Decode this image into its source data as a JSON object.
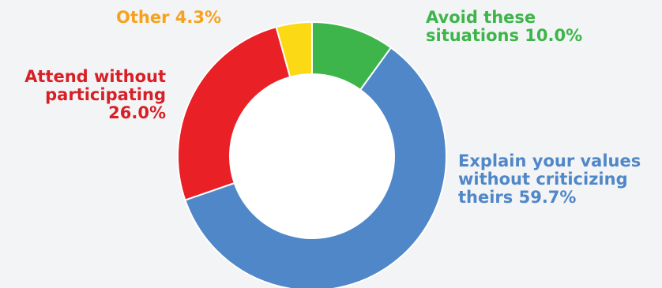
{
  "chart_data": {
    "type": "pie",
    "variant": "donut",
    "start_angle_deg": 0,
    "direction": "clockwise",
    "slices": [
      {
        "label": "Avoid these situations",
        "value": 10.0,
        "color": "#3db54a",
        "text_lines": [
          "Avoid these",
          "situations 10.0%"
        ]
      },
      {
        "label": "Explain your values without criticizing theirs",
        "value": 59.7,
        "color": "#4f87c8",
        "text_lines": [
          "Explain your values",
          "without criticizing",
          "theirs 59.7%"
        ]
      },
      {
        "label": "Attend without participating",
        "value": 26.0,
        "color": "#ea2027",
        "text_lines": [
          "Attend without",
          "participating",
          "26.0%"
        ]
      },
      {
        "label": "Other",
        "value": 4.3,
        "color": "#fbd914",
        "text_lines": [
          "Other 4.3%"
        ]
      }
    ],
    "label_colors": [
      "#3db54a",
      "#4f87c8",
      "#d71f26",
      "#f6a21d"
    ]
  }
}
